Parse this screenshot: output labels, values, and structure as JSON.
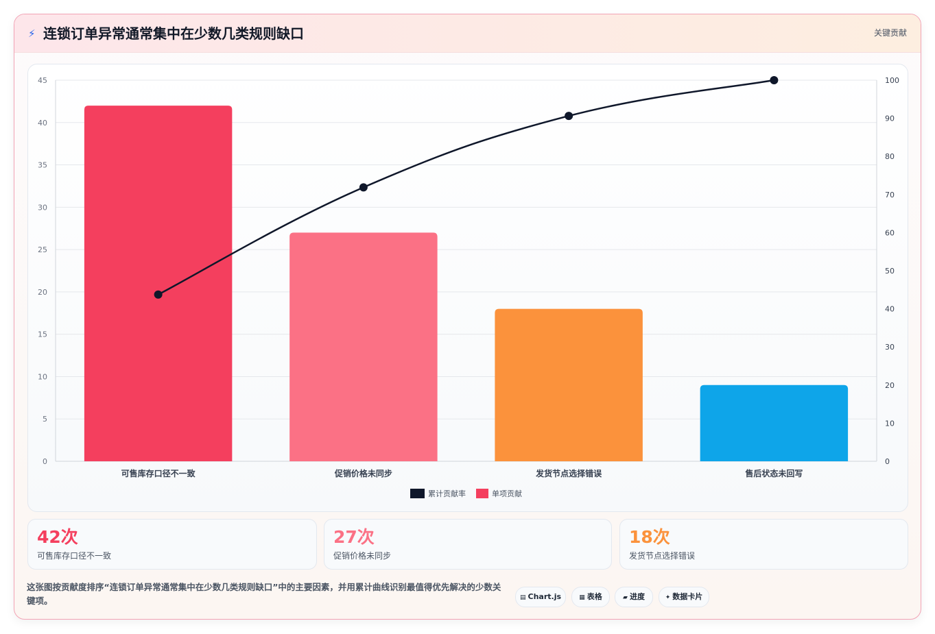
{
  "header": {
    "title": "连锁订单异常通常集中在少数几类规则缺口",
    "tag": "关键贡献",
    "icon": "lightning-icon"
  },
  "chart_data": {
    "type": "bar",
    "categories": [
      "可售库存口径不一致",
      "促销价格未同步",
      "发货节点选择错误",
      "售后状态未回写"
    ],
    "series": [
      {
        "name": "单项贡献",
        "type": "bar",
        "values": [
          42,
          27,
          18,
          9
        ],
        "colors": [
          "#f43f5e",
          "#fb7185",
          "#fb923c",
          "#0ea5e9"
        ]
      },
      {
        "name": "累计贡献率",
        "type": "line",
        "values": [
          43.75,
          71.88,
          90.63,
          100
        ],
        "color": "#0f172a"
      }
    ],
    "ylim": [
      0,
      45
    ],
    "y_ticks": [
      0,
      5,
      10,
      15,
      20,
      25,
      30,
      35,
      40,
      45
    ],
    "y2lim": [
      0,
      100
    ],
    "y2_ticks": [
      0,
      10,
      20,
      30,
      40,
      50,
      60,
      70,
      80,
      90,
      100
    ],
    "grid": true,
    "legend_position": "bottom",
    "legend": [
      "累计贡献率",
      "单项贡献"
    ]
  },
  "stats": [
    {
      "value": "42次",
      "label": "可售库存口径不一致",
      "color": "#f43f5e"
    },
    {
      "value": "27次",
      "label": "促销价格未同步",
      "color": "#fb7185"
    },
    {
      "value": "18次",
      "label": "发货节点选择错误",
      "color": "#fb923c"
    }
  ],
  "description": "这张图按贡献度排序“连锁订单异常通常集中在少数几类规则缺口”中的主要因素，并用累计曲线识别最值得优先解决的少数关键项。",
  "pills": [
    {
      "icon": "▤",
      "label": "Chart.js"
    },
    {
      "icon": "▦",
      "label": "表格"
    },
    {
      "icon": "▰",
      "label": "进度"
    },
    {
      "icon": "✦",
      "label": "数据卡片"
    }
  ]
}
